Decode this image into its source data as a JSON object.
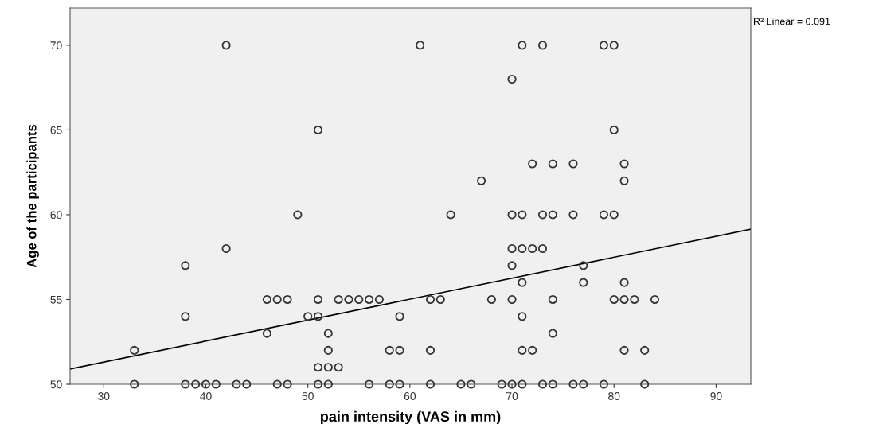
{
  "chart_data": {
    "type": "scatter",
    "xlabel": "pain intensity (VAS in mm)",
    "ylabel": "Age of the participants",
    "xlim": [
      26.7,
      93.4
    ],
    "ylim": [
      50,
      72.2
    ],
    "xticks": [
      30,
      40,
      50,
      60,
      70,
      80,
      90
    ],
    "yticks": [
      50,
      55,
      60,
      65,
      70
    ],
    "grid": false,
    "marker": "circle",
    "annotations": [
      "R² Linear = 0.091"
    ],
    "series": [
      {
        "color": "#333333",
        "x": [
          42,
          61,
          71,
          73,
          79,
          80,
          70,
          51,
          80,
          72,
          74,
          76,
          81,
          67,
          81,
          49,
          64,
          70,
          71,
          73,
          74,
          76,
          79,
          80,
          42,
          70,
          71,
          72,
          73,
          38,
          70,
          77,
          71,
          77,
          81,
          46,
          47,
          48,
          51,
          53,
          54,
          55,
          56,
          57,
          62,
          63,
          68,
          70,
          74,
          80,
          81,
          82,
          84,
          38,
          50,
          51,
          59,
          71,
          46,
          52,
          74,
          33,
          52,
          58,
          59,
          62,
          71,
          72,
          81,
          83,
          51,
          52,
          53,
          33,
          38,
          39,
          40,
          41,
          43,
          44,
          47,
          48,
          51,
          52,
          56,
          58,
          59,
          62,
          65,
          66,
          69,
          70,
          71,
          73,
          74,
          76,
          77,
          79,
          83
        ],
        "values": [
          70,
          70,
          70,
          70,
          70,
          70,
          68,
          65,
          65,
          63,
          63,
          63,
          63,
          62,
          62,
          60,
          60,
          60,
          60,
          60,
          60,
          60,
          60,
          60,
          58,
          58,
          58,
          58,
          58,
          57,
          57,
          57,
          56,
          56,
          56,
          55,
          55,
          55,
          55,
          55,
          55,
          55,
          55,
          55,
          55,
          55,
          55,
          55,
          55,
          55,
          55,
          55,
          55,
          54,
          54,
          54,
          54,
          54,
          53,
          53,
          53,
          52,
          52,
          52,
          52,
          52,
          52,
          52,
          52,
          52,
          51,
          51,
          51,
          50,
          50,
          50,
          50,
          50,
          50,
          50,
          50,
          50,
          50,
          50,
          50,
          50,
          50,
          50,
          50,
          50,
          50,
          50,
          50,
          50,
          50,
          50,
          50,
          50,
          50
        ]
      },
      {
        "type": "line",
        "color": "#000000",
        "x": [
          26.7,
          93.4
        ],
        "values": [
          50.9,
          59.15
        ],
        "marker": "none",
        "line_style": "solid"
      }
    ]
  }
}
